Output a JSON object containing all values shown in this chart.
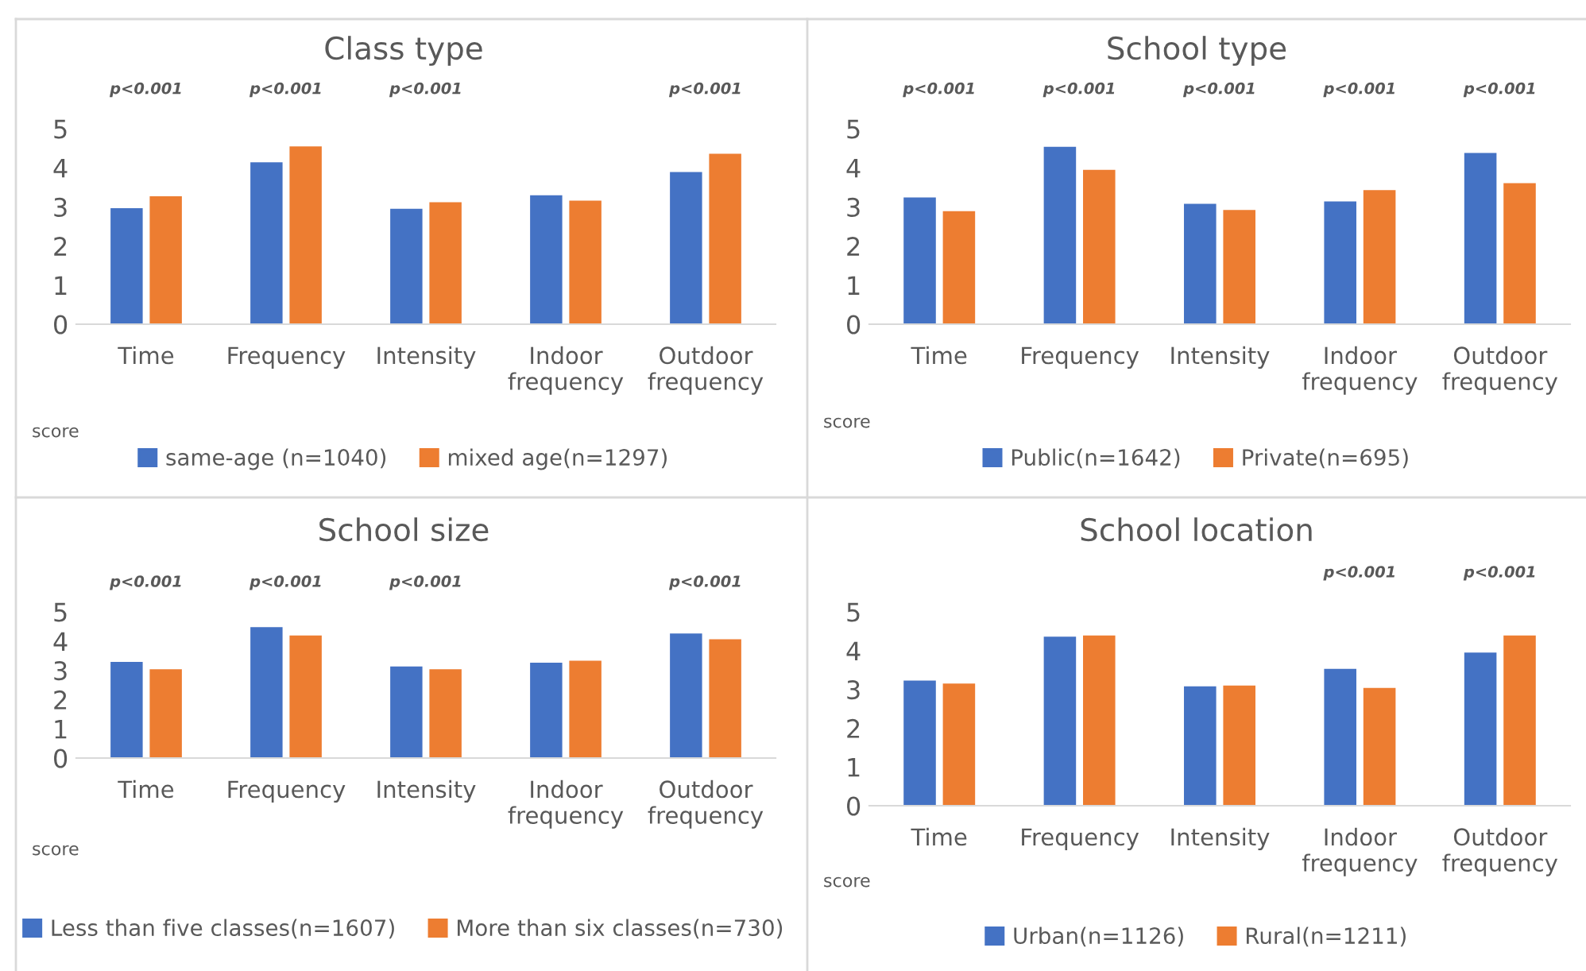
{
  "chart_data": [
    {
      "type": "bar",
      "title": "Class type",
      "ylabel": "score",
      "categories": [
        "Time",
        "Frequency",
        "Intensity",
        "Indoor frequency",
        "Outdoor frequency"
      ],
      "ylim": [
        0,
        5
      ],
      "yticks": [
        0,
        1,
        2,
        3,
        4,
        5
      ],
      "grid": false,
      "legend": "bottom",
      "series": [
        {
          "name": "same-age (n=1040)",
          "color": "#4472c4",
          "values": [
            2.97,
            4.14,
            2.95,
            3.3,
            3.89
          ]
        },
        {
          "name": "mixed age(n=1297)",
          "color": "#ed7d31",
          "values": [
            3.27,
            4.55,
            3.12,
            3.16,
            4.36
          ]
        }
      ],
      "annotations": [
        "p<0.001",
        "p<0.001",
        "p<0.001",
        "p<0.001"
      ]
    },
    {
      "type": "bar",
      "title": "School type",
      "ylabel": "score",
      "categories": [
        "Time",
        "Frequency",
        "Intensity",
        "Indoor frequency",
        "Outdoor frequency"
      ],
      "ylim": [
        0,
        5
      ],
      "yticks": [
        0,
        1,
        2,
        3,
        4,
        5
      ],
      "grid": false,
      "legend": "bottom",
      "series": [
        {
          "name": "Public(n=1642)",
          "color": "#4472c4",
          "values": [
            3.24,
            4.54,
            3.08,
            3.14,
            4.38
          ]
        },
        {
          "name": "Private(n=695)",
          "color": "#ed7d31",
          "values": [
            2.89,
            3.95,
            2.92,
            3.43,
            3.61
          ]
        }
      ],
      "annotations": [
        "p<0.001",
        "p<0.001",
        "p<0.001",
        "p<0.001",
        "p<0.001"
      ]
    },
    {
      "type": "bar",
      "title": "School size",
      "ylabel": "score",
      "categories": [
        "Time",
        "Frequency",
        "Intensity",
        "Indoor frequency",
        "Outdoor frequency"
      ],
      "ylim": [
        0,
        5
      ],
      "yticks": [
        0,
        1,
        2,
        3,
        4,
        5
      ],
      "grid": false,
      "legend": "bottom",
      "series": [
        {
          "name": "Less than five classes(n=1607)",
          "color": "#4472c4",
          "values": [
            3.29,
            4.48,
            3.13,
            3.26,
            4.26
          ]
        },
        {
          "name": "More than six classes(n=730)",
          "color": "#ed7d31",
          "values": [
            3.04,
            4.19,
            3.04,
            3.33,
            4.06
          ]
        }
      ],
      "annotations": [
        "p<0.001",
        "p<0.001",
        "p<0.001",
        "p<0.001"
      ]
    },
    {
      "type": "bar",
      "title": "School location",
      "ylabel": "score",
      "categories": [
        "Time",
        "Frequency",
        "Intensity",
        "Indoor frequency",
        "Outdoor frequency"
      ],
      "ylim": [
        0,
        5
      ],
      "yticks": [
        0,
        1,
        2,
        3,
        4,
        5
      ],
      "grid": false,
      "legend": "bottom",
      "series": [
        {
          "name": "Urban(n=1126)",
          "color": "#4472c4",
          "values": [
            3.23,
            4.36,
            3.08,
            3.53,
            3.95
          ]
        },
        {
          "name": "Rural(n=1211)",
          "color": "#ed7d31",
          "values": [
            3.15,
            4.39,
            3.1,
            3.04,
            4.39
          ]
        }
      ],
      "annotations": [
        "p<0.001",
        "p<0.001"
      ]
    }
  ]
}
